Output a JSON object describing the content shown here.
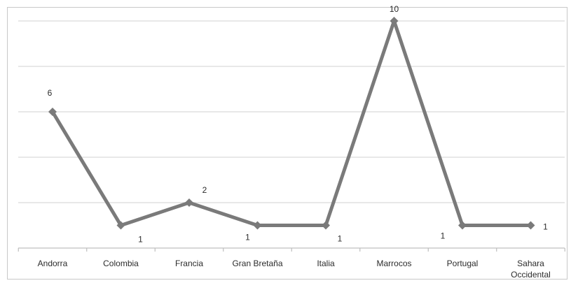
{
  "chart_data": {
    "type": "line",
    "categories": [
      "Andorra",
      "Colombia",
      "Francia",
      "Gran Bretaña",
      "Italia",
      "Marrocos",
      "Portugal",
      "Sahara Occidental"
    ],
    "series": [
      {
        "values": [
          6,
          1,
          2,
          1,
          1,
          10,
          1,
          1
        ]
      }
    ],
    "data_labels": [
      "6",
      "1",
      "2",
      "1",
      "1",
      "10",
      "1",
      "1"
    ],
    "ylim": [
      0,
      10
    ],
    "grid": true,
    "y_tick_labels_visible": false,
    "legend": "none",
    "colors": {
      "series": "#7a7a7a",
      "grid": "#d9d9d9"
    }
  }
}
